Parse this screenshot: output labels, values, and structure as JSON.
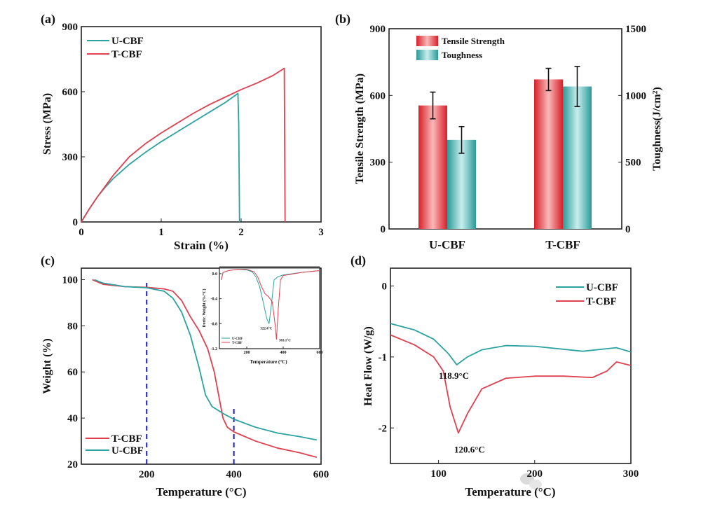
{
  "watermark": "公众号 · AM易道",
  "colors": {
    "u_cbf": "#2aa3a0",
    "t_cbf": "#e04050",
    "dashed_line": "#1a1acc"
  },
  "chart_data": [
    {
      "panel": "(a)",
      "type": "line",
      "xlabel": "Strain (%)",
      "ylabel": "Stress (MPa)",
      "xlim": [
        0,
        3
      ],
      "ylim": [
        0,
        900
      ],
      "x_ticks": [
        "0",
        "1",
        "2",
        "3"
      ],
      "y_ticks": [
        "0",
        "300",
        "600",
        "900"
      ],
      "legend": "top-left",
      "series": [
        {
          "name": "U-CBF",
          "color": "#2aa3a0",
          "points": [
            [
              0,
              0
            ],
            [
              0.1,
              60
            ],
            [
              0.2,
              115
            ],
            [
              0.3,
              160
            ],
            [
              0.4,
              200
            ],
            [
              0.6,
              265
            ],
            [
              0.8,
              320
            ],
            [
              1.0,
              370
            ],
            [
              1.2,
              415
            ],
            [
              1.4,
              460
            ],
            [
              1.6,
              505
            ],
            [
              1.8,
              550
            ],
            [
              1.96,
              592
            ],
            [
              1.97,
              450
            ],
            [
              1.98,
              0
            ]
          ]
        },
        {
          "name": "T-CBF",
          "color": "#e04050",
          "points": [
            [
              0,
              0
            ],
            [
              0.1,
              60
            ],
            [
              0.2,
              115
            ],
            [
              0.3,
              165
            ],
            [
              0.4,
              215
            ],
            [
              0.6,
              300
            ],
            [
              0.8,
              360
            ],
            [
              1.0,
              410
            ],
            [
              1.2,
              455
            ],
            [
              1.4,
              500
            ],
            [
              1.6,
              540
            ],
            [
              1.8,
              575
            ],
            [
              2.0,
              610
            ],
            [
              2.2,
              640
            ],
            [
              2.4,
              675
            ],
            [
              2.54,
              708
            ],
            [
              2.55,
              0
            ]
          ]
        }
      ]
    },
    {
      "panel": "(b)",
      "type": "bar",
      "categories": [
        "U-CBF",
        "T-CBF"
      ],
      "ylabel": "Tensile Strength (MPa)",
      "ylabel_right": "Toughness(J/cm²)",
      "ylim": [
        0,
        900
      ],
      "ylim_right": [
        0,
        1500
      ],
      "y_ticks": [
        "0",
        "300",
        "600",
        "900"
      ],
      "y_ticks_right": [
        "0",
        "500",
        "1000",
        "1500"
      ],
      "legend": "top-left",
      "series": [
        {
          "name": "Tensile Strength",
          "axis": "left",
          "color": "#e03038",
          "values": [
            555,
            672
          ],
          "errors": [
            60,
            50
          ]
        },
        {
          "name": "Toughness",
          "axis": "right",
          "color": "#2a9a98",
          "values": [
            667,
            1067
          ],
          "errors": [
            100,
            150
          ]
        }
      ]
    },
    {
      "panel": "(c)",
      "type": "line",
      "xlabel": "Temperature (°C)",
      "ylabel": "Weight (%)",
      "xlim": [
        50,
        600
      ],
      "ylim": [
        20,
        105
      ],
      "x_ticks": [
        "200",
        "400",
        "600"
      ],
      "y_ticks": [
        "20",
        "40",
        "60",
        "80",
        "100"
      ],
      "legend": "bottom-left",
      "reference_lines_x": [
        {
          "x": 200,
          "y_top": 99
        },
        {
          "x": 400,
          "y_top": 45
        }
      ],
      "series": [
        {
          "name": "T-CBF",
          "color": "#e04050",
          "points": [
            [
              75,
              100
            ],
            [
              100,
              98
            ],
            [
              150,
              97
            ],
            [
              200,
              96.7
            ],
            [
              240,
              96
            ],
            [
              260,
              95
            ],
            [
              280,
              91
            ],
            [
              300,
              84
            ],
            [
              320,
              78
            ],
            [
              340,
              70
            ],
            [
              355,
              60
            ],
            [
              365,
              50
            ],
            [
              375,
              40
            ],
            [
              385,
              36
            ],
            [
              400,
              34
            ],
            [
              450,
              30
            ],
            [
              500,
              27
            ],
            [
              550,
              25
            ],
            [
              590,
              23
            ]
          ]
        },
        {
          "name": "U-CBF",
          "color": "#2aa3a0",
          "points": [
            [
              80,
              100
            ],
            [
              100,
              98.5
            ],
            [
              150,
              97
            ],
            [
              200,
              96.5
            ],
            [
              240,
              95
            ],
            [
              260,
              92
            ],
            [
              280,
              86
            ],
            [
              300,
              76
            ],
            [
              320,
              62
            ],
            [
              335,
              50
            ],
            [
              350,
              45
            ],
            [
              375,
              42
            ],
            [
              400,
              39.5
            ],
            [
              450,
              36
            ],
            [
              500,
              33.5
            ],
            [
              550,
              32
            ],
            [
              590,
              30.5
            ]
          ]
        }
      ]
    },
    {
      "panel": "",
      "inset_of": "(c)",
      "type": "line",
      "xlabel": "Temperature (°C)",
      "ylabel": "Deriv. Weight (%/°C)",
      "xlim": [
        50,
        600
      ],
      "ylim": [
        -1.2,
        0.1
      ],
      "x_ticks": [
        "200",
        "400",
        "600"
      ],
      "y_ticks": [
        "0.0",
        "-0.4",
        "-0.8",
        "-1.2"
      ],
      "legend": "bottom-left",
      "annotations": [
        {
          "text": "322.4°C",
          "x": 322.4,
          "y": -0.8
        },
        {
          "text": "363.1°C",
          "x": 363.1,
          "y": -1.05
        }
      ],
      "series": [
        {
          "name": "U-CBF",
          "color": "#2aa3a0",
          "points": [
            [
              60,
              -0.1
            ],
            [
              70,
              0.02
            ],
            [
              100,
              0.05
            ],
            [
              150,
              0.07
            ],
            [
              200,
              0.06
            ],
            [
              230,
              0.03
            ],
            [
              250,
              -0.05
            ],
            [
              270,
              -0.2
            ],
            [
              290,
              -0.45
            ],
            [
              310,
              -0.72
            ],
            [
              322.4,
              -0.8
            ],
            [
              335,
              -0.5
            ],
            [
              350,
              -0.1
            ],
            [
              370,
              -0.05
            ],
            [
              400,
              -0.02
            ],
            [
              500,
              0.02
            ],
            [
              600,
              0.05
            ]
          ]
        },
        {
          "name": "T-CBF",
          "color": "#e04050",
          "points": [
            [
              60,
              -0.1
            ],
            [
              70,
              0.02
            ],
            [
              100,
              0.05
            ],
            [
              150,
              0.07
            ],
            [
              200,
              0.07
            ],
            [
              240,
              0.03
            ],
            [
              260,
              -0.05
            ],
            [
              280,
              -0.2
            ],
            [
              300,
              -0.32
            ],
            [
              320,
              -0.37
            ],
            [
              340,
              -0.45
            ],
            [
              355,
              -0.8
            ],
            [
              363.1,
              -1.05
            ],
            [
              372,
              -0.6
            ],
            [
              385,
              -0.1
            ],
            [
              400,
              -0.03
            ],
            [
              500,
              0.02
            ],
            [
              600,
              0.05
            ]
          ]
        }
      ]
    },
    {
      "panel": "(d)",
      "type": "line",
      "xlabel": "Temperature (°C)",
      "ylabel": "Heat Flow (W/g)",
      "xlim": [
        50,
        300
      ],
      "ylim": [
        -2.5,
        0.25
      ],
      "x_ticks": [
        "100",
        "200",
        "300"
      ],
      "y_ticks": [
        "-2",
        "-1",
        "0"
      ],
      "legend": "top-right",
      "annotations": [
        {
          "text": "118.9°C",
          "x": 118.9,
          "y": -1.11
        },
        {
          "text": "120.6°C",
          "x": 120.6,
          "y": -2.07
        }
      ],
      "series": [
        {
          "name": "U-CBF",
          "color": "#2aa3a0",
          "points": [
            [
              50,
              -0.53
            ],
            [
              75,
              -0.62
            ],
            [
              95,
              -0.75
            ],
            [
              110,
              -0.95
            ],
            [
              118.9,
              -1.11
            ],
            [
              130,
              -1.0
            ],
            [
              145,
              -0.9
            ],
            [
              170,
              -0.84
            ],
            [
              200,
              -0.85
            ],
            [
              250,
              -0.92
            ],
            [
              285,
              -0.87
            ],
            [
              300,
              -0.93
            ]
          ]
        },
        {
          "name": "T-CBF",
          "color": "#e04050",
          "points": [
            [
              50,
              -0.69
            ],
            [
              75,
              -0.83
            ],
            [
              95,
              -1.0
            ],
            [
              105,
              -1.2
            ],
            [
              112,
              -1.7
            ],
            [
              120.6,
              -2.07
            ],
            [
              130,
              -1.8
            ],
            [
              145,
              -1.45
            ],
            [
              170,
              -1.3
            ],
            [
              200,
              -1.27
            ],
            [
              230,
              -1.27
            ],
            [
              260,
              -1.29
            ],
            [
              275,
              -1.2
            ],
            [
              285,
              -1.07
            ],
            [
              300,
              -1.12
            ]
          ]
        }
      ]
    }
  ]
}
